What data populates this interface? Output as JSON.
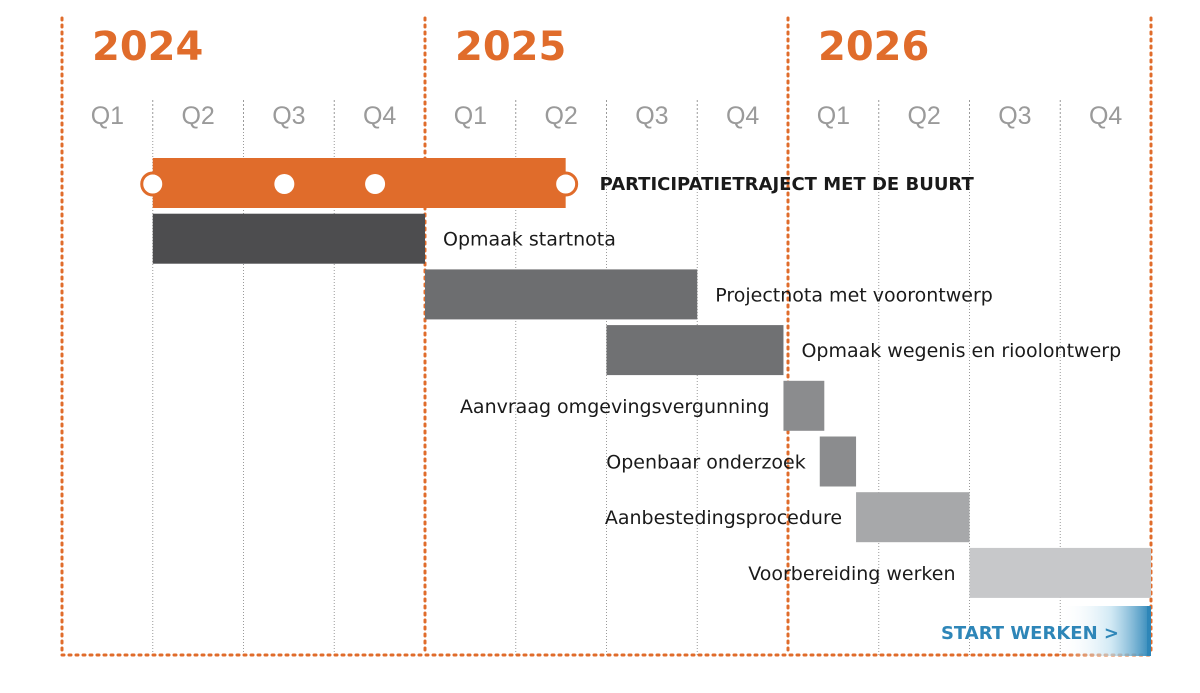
{
  "chart_data": {
    "type": "gantt",
    "years": [
      {
        "label": "2024",
        "start_quarter": 0
      },
      {
        "label": "2025",
        "start_quarter": 4
      },
      {
        "label": "2026",
        "start_quarter": 8
      }
    ],
    "quarters": [
      "Q1",
      "Q2",
      "Q3",
      "Q4",
      "Q1",
      "Q2",
      "Q3",
      "Q4",
      "Q1",
      "Q2",
      "Q3",
      "Q4"
    ],
    "tasks": [
      {
        "name": "PARTICIPATIETRAJECT MET DE BUURT",
        "start": 1.0,
        "end": 5.55,
        "label_side": "right",
        "color": "#e06c2b",
        "highlight": true,
        "milestones": [
          1.0,
          2.45,
          3.45,
          5.55
        ]
      },
      {
        "name": "Opmaak startnota",
        "start": 1.0,
        "end": 4.0,
        "label_side": "right",
        "color": "#4d4d4f"
      },
      {
        "name": "Projectnota met voorontwerp",
        "start": 4.0,
        "end": 7.0,
        "label_side": "right",
        "color": "#6d6e70"
      },
      {
        "name": "Opmaak wegenis en rioolontwerp",
        "start": 6.0,
        "end": 7.95,
        "label_side": "right",
        "color": "#707173"
      },
      {
        "name": "Aanvraag omgevingsvergunning",
        "start": 7.95,
        "end": 8.4,
        "label_side": "left",
        "color": "#8b8c8e"
      },
      {
        "name": "Openbaar onderzoek",
        "start": 8.35,
        "end": 8.75,
        "label_side": "left",
        "color": "#8b8c8e"
      },
      {
        "name": "Aanbestedingsprocedure",
        "start": 8.75,
        "end": 10.0,
        "label_side": "left",
        "color": "#a7a8aa"
      },
      {
        "name": "Voorbereiding werken",
        "start": 10.0,
        "end": 12.0,
        "label_side": "left",
        "color": "#c7c8ca"
      }
    ],
    "end_marker": {
      "label": "START WERKEN >",
      "color": "#2e86b8"
    },
    "colors": {
      "year": "#e06c2b",
      "divider": "#e06c2b",
      "gridline": "#9a9a9a",
      "quarter_text": "#9a9a9a"
    }
  }
}
